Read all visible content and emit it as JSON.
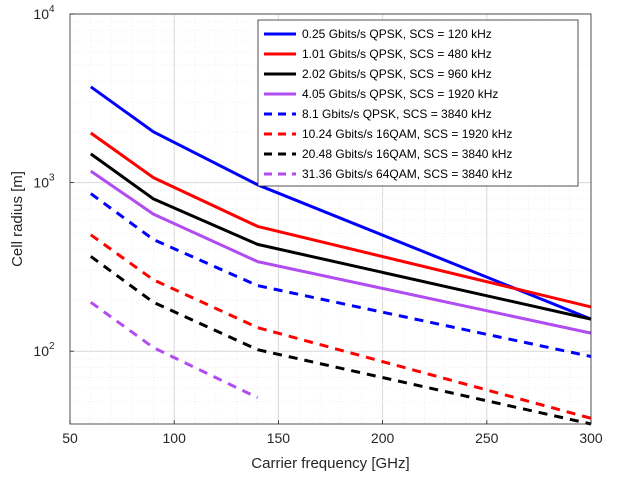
{
  "chart_data": {
    "type": "line",
    "title": "",
    "xlabel": "Carrier frequency [GHz]",
    "ylabel": "Cell radius [m]",
    "xlim": [
      50,
      300
    ],
    "ylim": [
      37,
      10000
    ],
    "yscale": "log",
    "grid": true,
    "legend_position": "top-right",
    "x_ticks": [
      "50",
      "100",
      "150",
      "200",
      "250",
      "300"
    ],
    "y_ticks": [
      {
        "value": 100,
        "base": "10",
        "exp": "2"
      },
      {
        "value": 1000,
        "base": "10",
        "exp": "3"
      },
      {
        "value": 10000,
        "base": "10",
        "exp": "4"
      }
    ],
    "series": [
      {
        "name": "0.25 Gbits/s QPSK, SCS = 120 kHz",
        "color": "#0000ff",
        "dash": "solid",
        "x": [
          60,
          90,
          140,
          300
        ],
        "y": [
          3700,
          2000,
          970,
          155
        ]
      },
      {
        "name": "1.01 Gbits/s QPSK,  SCS = 480 kHz",
        "color": "#ff0000",
        "dash": "solid",
        "x": [
          60,
          90,
          140,
          300
        ],
        "y": [
          1970,
          1070,
          550,
          183
        ]
      },
      {
        "name": "2.02 Gbits/s QPSK,  SCS = 960 kHz",
        "color": "#000000",
        "dash": "solid",
        "x": [
          60,
          90,
          140,
          300
        ],
        "y": [
          1480,
          800,
          430,
          155
        ]
      },
      {
        "name": "4.05 Gbits/s QPSK,  SCS = 1920 kHz",
        "color": "#b14df0",
        "dash": "solid",
        "x": [
          60,
          90,
          140,
          300
        ],
        "y": [
          1170,
          650,
          340,
          128
        ]
      },
      {
        "name": "8.1 Gbits/s QPSK,  SCS = 3840 kHz",
        "color": "#0000ff",
        "dash": "dashed",
        "x": [
          60,
          90,
          140,
          300
        ],
        "y": [
          860,
          460,
          245,
          93
        ]
      },
      {
        "name": "10.24 Gbits/s 16QAM,  SCS = 1920 kHz",
        "color": "#ff0000",
        "dash": "dashed",
        "x": [
          60,
          90,
          140,
          300
        ],
        "y": [
          490,
          265,
          138,
          40
        ]
      },
      {
        "name": "20.48 Gbits/s 16QAM, SCS = 3840 kHz",
        "color": "#000000",
        "dash": "dashed",
        "x": [
          60,
          90,
          140,
          300
        ],
        "y": [
          365,
          195,
          102,
          37
        ]
      },
      {
        "name": "31.36 Gbits/s 64QAM,  SCS = 3840 kHz",
        "color": "#b14df0",
        "dash": "dashed",
        "x": [
          60,
          90,
          140
        ],
        "y": [
          195,
          105,
          53
        ]
      }
    ]
  }
}
